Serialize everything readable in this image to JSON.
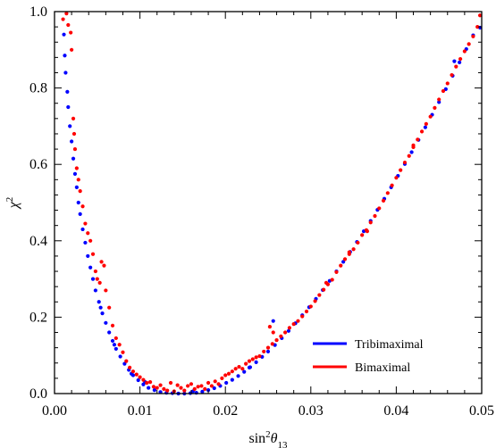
{
  "chart_data": {
    "type": "scatter",
    "xlabel": "sin²θ₁₃",
    "xlabel_parts": {
      "base": "sin",
      "sup": "2",
      "theta": "θ",
      "sub": "13"
    },
    "ylabel": "χ²",
    "ylabel_parts": {
      "base": "χ",
      "sup": "2"
    },
    "xlim": [
      0.0,
      0.05
    ],
    "ylim": [
      0.0,
      1.0
    ],
    "xticks": [
      0.0,
      0.01,
      0.02,
      0.03,
      0.04,
      0.05
    ],
    "xtick_labels": [
      "0.00",
      "0.01",
      "0.02",
      "0.03",
      "0.04",
      "0.05"
    ],
    "yticks": [
      0.0,
      0.2,
      0.4,
      0.6,
      0.8,
      1.0
    ],
    "ytick_labels": [
      "0.0",
      "0.2",
      "0.4",
      "0.6",
      "0.8",
      "1.0"
    ],
    "grid": false,
    "legend_position": "bottom-right",
    "series": [
      {
        "name": "Tribimaximal",
        "color": "#0000ff",
        "points": [
          [
            0.0011,
            0.94
          ],
          [
            0.0012,
            0.885
          ],
          [
            0.0013,
            0.84
          ],
          [
            0.0015,
            0.79
          ],
          [
            0.0016,
            0.75
          ],
          [
            0.0018,
            0.7
          ],
          [
            0.002,
            0.66
          ],
          [
            0.0022,
            0.615
          ],
          [
            0.0024,
            0.575
          ],
          [
            0.0026,
            0.54
          ],
          [
            0.0028,
            0.5
          ],
          [
            0.003,
            0.47
          ],
          [
            0.0033,
            0.43
          ],
          [
            0.0036,
            0.395
          ],
          [
            0.0039,
            0.36
          ],
          [
            0.0042,
            0.33
          ],
          [
            0.0045,
            0.3
          ],
          [
            0.0048,
            0.27
          ],
          [
            0.0052,
            0.24
          ],
          [
            0.0056,
            0.21
          ],
          [
            0.006,
            0.185
          ],
          [
            0.0064,
            0.16
          ],
          [
            0.0068,
            0.138
          ],
          [
            0.0072,
            0.117
          ],
          [
            0.0077,
            0.097
          ],
          [
            0.0082,
            0.078
          ],
          [
            0.0087,
            0.062
          ],
          [
            0.0092,
            0.048
          ],
          [
            0.0098,
            0.035
          ],
          [
            0.0104,
            0.024
          ],
          [
            0.011,
            0.015
          ],
          [
            0.0117,
            0.009
          ],
          [
            0.0124,
            0.004
          ],
          [
            0.0131,
            0.002
          ],
          [
            0.0138,
            0.001
          ],
          [
            0.0145,
            0.0
          ],
          [
            0.0152,
            0.0
          ],
          [
            0.0159,
            0.001
          ],
          [
            0.0166,
            0.002
          ],
          [
            0.0173,
            0.005
          ],
          [
            0.018,
            0.009
          ],
          [
            0.0187,
            0.014
          ],
          [
            0.0194,
            0.02
          ],
          [
            0.0201,
            0.028
          ],
          [
            0.0208,
            0.036
          ],
          [
            0.0215,
            0.046
          ],
          [
            0.0222,
            0.057
          ],
          [
            0.0229,
            0.069
          ],
          [
            0.0236,
            0.082
          ],
          [
            0.0243,
            0.096
          ],
          [
            0.025,
            0.11
          ],
          [
            0.0258,
            0.127
          ],
          [
            0.0266,
            0.145
          ],
          [
            0.0274,
            0.164
          ],
          [
            0.0282,
            0.184
          ],
          [
            0.029,
            0.205
          ],
          [
            0.0298,
            0.226
          ],
          [
            0.0306,
            0.248
          ],
          [
            0.0314,
            0.271
          ],
          [
            0.0322,
            0.295
          ],
          [
            0.033,
            0.32
          ],
          [
            0.0338,
            0.345
          ],
          [
            0.0346,
            0.371
          ],
          [
            0.0354,
            0.397
          ],
          [
            0.0362,
            0.425
          ],
          [
            0.037,
            0.452
          ],
          [
            0.0378,
            0.481
          ],
          [
            0.0386,
            0.51
          ],
          [
            0.0394,
            0.54
          ],
          [
            0.0402,
            0.57
          ],
          [
            0.041,
            0.601
          ],
          [
            0.0418,
            0.632
          ],
          [
            0.0426,
            0.664
          ],
          [
            0.0434,
            0.697
          ],
          [
            0.0442,
            0.73
          ],
          [
            0.045,
            0.763
          ],
          [
            0.0458,
            0.797
          ],
          [
            0.0466,
            0.832
          ],
          [
            0.0474,
            0.867
          ],
          [
            0.0482,
            0.902
          ],
          [
            0.049,
            0.938
          ],
          [
            0.0498,
            0.958
          ],
          [
            0.0256,
            0.19
          ],
          [
            0.0468,
            0.87
          ],
          [
            0.0106,
            0.03
          ],
          [
            0.0054,
            0.225
          ],
          [
            0.007,
            0.128
          ],
          [
            0.009,
            0.052
          ],
          [
            0.0162,
            0.006
          ],
          [
            0.0228,
            0.068
          ]
        ]
      },
      {
        "name": "Bimaximal",
        "color": "#ff0000",
        "points": [
          [
            0.001,
            0.98
          ],
          [
            0.0014,
            0.995
          ],
          [
            0.0016,
            0.965
          ],
          [
            0.0019,
            0.945
          ],
          [
            0.002,
            0.9
          ],
          [
            0.0022,
            0.72
          ],
          [
            0.0023,
            0.68
          ],
          [
            0.0024,
            0.64
          ],
          [
            0.0026,
            0.59
          ],
          [
            0.0028,
            0.56
          ],
          [
            0.003,
            0.53
          ],
          [
            0.0033,
            0.49
          ],
          [
            0.0036,
            0.445
          ],
          [
            0.0039,
            0.42
          ],
          [
            0.0042,
            0.4
          ],
          [
            0.0045,
            0.365
          ],
          [
            0.0048,
            0.32
          ],
          [
            0.005,
            0.3
          ],
          [
            0.0053,
            0.29
          ],
          [
            0.0055,
            0.345
          ],
          [
            0.0058,
            0.335
          ],
          [
            0.006,
            0.27
          ],
          [
            0.0064,
            0.225
          ],
          [
            0.0068,
            0.178
          ],
          [
            0.0072,
            0.145
          ],
          [
            0.0076,
            0.128
          ],
          [
            0.008,
            0.108
          ],
          [
            0.0084,
            0.085
          ],
          [
            0.0088,
            0.068
          ],
          [
            0.0092,
            0.058
          ],
          [
            0.0096,
            0.05
          ],
          [
            0.01,
            0.043
          ],
          [
            0.0104,
            0.036
          ],
          [
            0.0108,
            0.028
          ],
          [
            0.0112,
            0.03
          ],
          [
            0.0116,
            0.018
          ],
          [
            0.012,
            0.015
          ],
          [
            0.0124,
            0.022
          ],
          [
            0.0128,
            0.012
          ],
          [
            0.0132,
            0.008
          ],
          [
            0.0136,
            0.028
          ],
          [
            0.014,
            0.006
          ],
          [
            0.0144,
            0.022
          ],
          [
            0.0148,
            0.015
          ],
          [
            0.0152,
            0.008
          ],
          [
            0.0156,
            0.02
          ],
          [
            0.016,
            0.025
          ],
          [
            0.0164,
            0.012
          ],
          [
            0.0168,
            0.018
          ],
          [
            0.0172,
            0.02
          ],
          [
            0.0176,
            0.012
          ],
          [
            0.018,
            0.028
          ],
          [
            0.0184,
            0.02
          ],
          [
            0.0188,
            0.032
          ],
          [
            0.0192,
            0.025
          ],
          [
            0.0196,
            0.04
          ],
          [
            0.02,
            0.048
          ],
          [
            0.0204,
            0.052
          ],
          [
            0.0208,
            0.058
          ],
          [
            0.0212,
            0.065
          ],
          [
            0.0216,
            0.07
          ],
          [
            0.022,
            0.065
          ],
          [
            0.0224,
            0.078
          ],
          [
            0.0228,
            0.085
          ],
          [
            0.0232,
            0.09
          ],
          [
            0.0236,
            0.095
          ],
          [
            0.024,
            0.098
          ],
          [
            0.0245,
            0.11
          ],
          [
            0.025,
            0.12
          ],
          [
            0.0255,
            0.13
          ],
          [
            0.026,
            0.14
          ],
          [
            0.0265,
            0.15
          ],
          [
            0.027,
            0.16
          ],
          [
            0.0275,
            0.172
          ],
          [
            0.028,
            0.182
          ],
          [
            0.0285,
            0.19
          ],
          [
            0.029,
            0.202
          ],
          [
            0.0295,
            0.215
          ],
          [
            0.03,
            0.228
          ],
          [
            0.0305,
            0.242
          ],
          [
            0.031,
            0.258
          ],
          [
            0.0315,
            0.272
          ],
          [
            0.032,
            0.286
          ],
          [
            0.0325,
            0.298
          ],
          [
            0.033,
            0.318
          ],
          [
            0.0335,
            0.335
          ],
          [
            0.034,
            0.352
          ],
          [
            0.0345,
            0.365
          ],
          [
            0.035,
            0.378
          ],
          [
            0.0355,
            0.395
          ],
          [
            0.036,
            0.415
          ],
          [
            0.0365,
            0.428
          ],
          [
            0.037,
            0.448
          ],
          [
            0.0375,
            0.465
          ],
          [
            0.038,
            0.485
          ],
          [
            0.0385,
            0.505
          ],
          [
            0.039,
            0.525
          ],
          [
            0.0395,
            0.545
          ],
          [
            0.04,
            0.565
          ],
          [
            0.0405,
            0.585
          ],
          [
            0.041,
            0.605
          ],
          [
            0.0415,
            0.622
          ],
          [
            0.042,
            0.645
          ],
          [
            0.0425,
            0.665
          ],
          [
            0.043,
            0.686
          ],
          [
            0.0435,
            0.706
          ],
          [
            0.044,
            0.725
          ],
          [
            0.0445,
            0.748
          ],
          [
            0.045,
            0.77
          ],
          [
            0.0455,
            0.792
          ],
          [
            0.046,
            0.812
          ],
          [
            0.0465,
            0.834
          ],
          [
            0.047,
            0.856
          ],
          [
            0.0475,
            0.876
          ],
          [
            0.048,
            0.896
          ],
          [
            0.0485,
            0.915
          ],
          [
            0.049,
            0.935
          ],
          [
            0.0495,
            0.96
          ],
          [
            0.0498,
            0.99
          ],
          [
            0.0252,
            0.175
          ],
          [
            0.0256,
            0.16
          ],
          [
            0.0318,
            0.29
          ],
          [
            0.0345,
            0.37
          ],
          [
            0.0366,
            0.425
          ],
          [
            0.042,
            0.65
          ]
        ]
      }
    ]
  }
}
